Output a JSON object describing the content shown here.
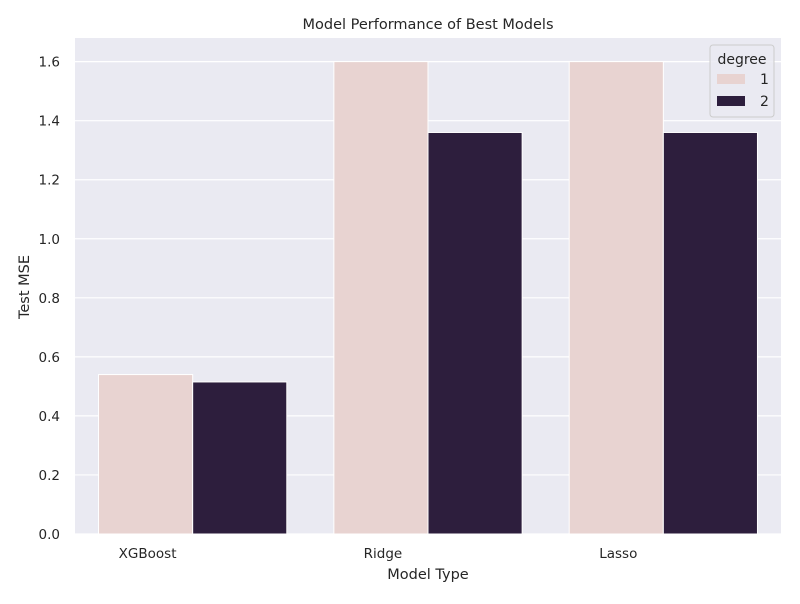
{
  "chart_data": {
    "type": "bar",
    "title": "Model Performance of Best Models",
    "xlabel": "Model Type",
    "ylabel": "Test MSE",
    "categories": [
      "XGBoost",
      "Ridge",
      "Lasso"
    ],
    "series": [
      {
        "name": "1",
        "values": [
          0.54,
          1.6,
          1.6
        ]
      },
      {
        "name": "2",
        "values": [
          0.515,
          1.36,
          1.36
        ]
      }
    ],
    "ylim": [
      0,
      1.68
    ],
    "yticks": [
      0.0,
      0.2,
      0.4,
      0.6,
      0.8,
      1.0,
      1.2,
      1.4,
      1.6
    ],
    "ytick_labels": [
      "0.0",
      "0.2",
      "0.4",
      "0.6",
      "0.8",
      "1.0",
      "1.2",
      "1.4",
      "1.6"
    ],
    "grid": true,
    "legend": {
      "title": "degree",
      "placement": "top-right"
    },
    "colors": {
      "background": "#eaeaf2",
      "grid": "#ffffff",
      "series": [
        "#e8d3d1",
        "#2d1e3d"
      ]
    }
  }
}
